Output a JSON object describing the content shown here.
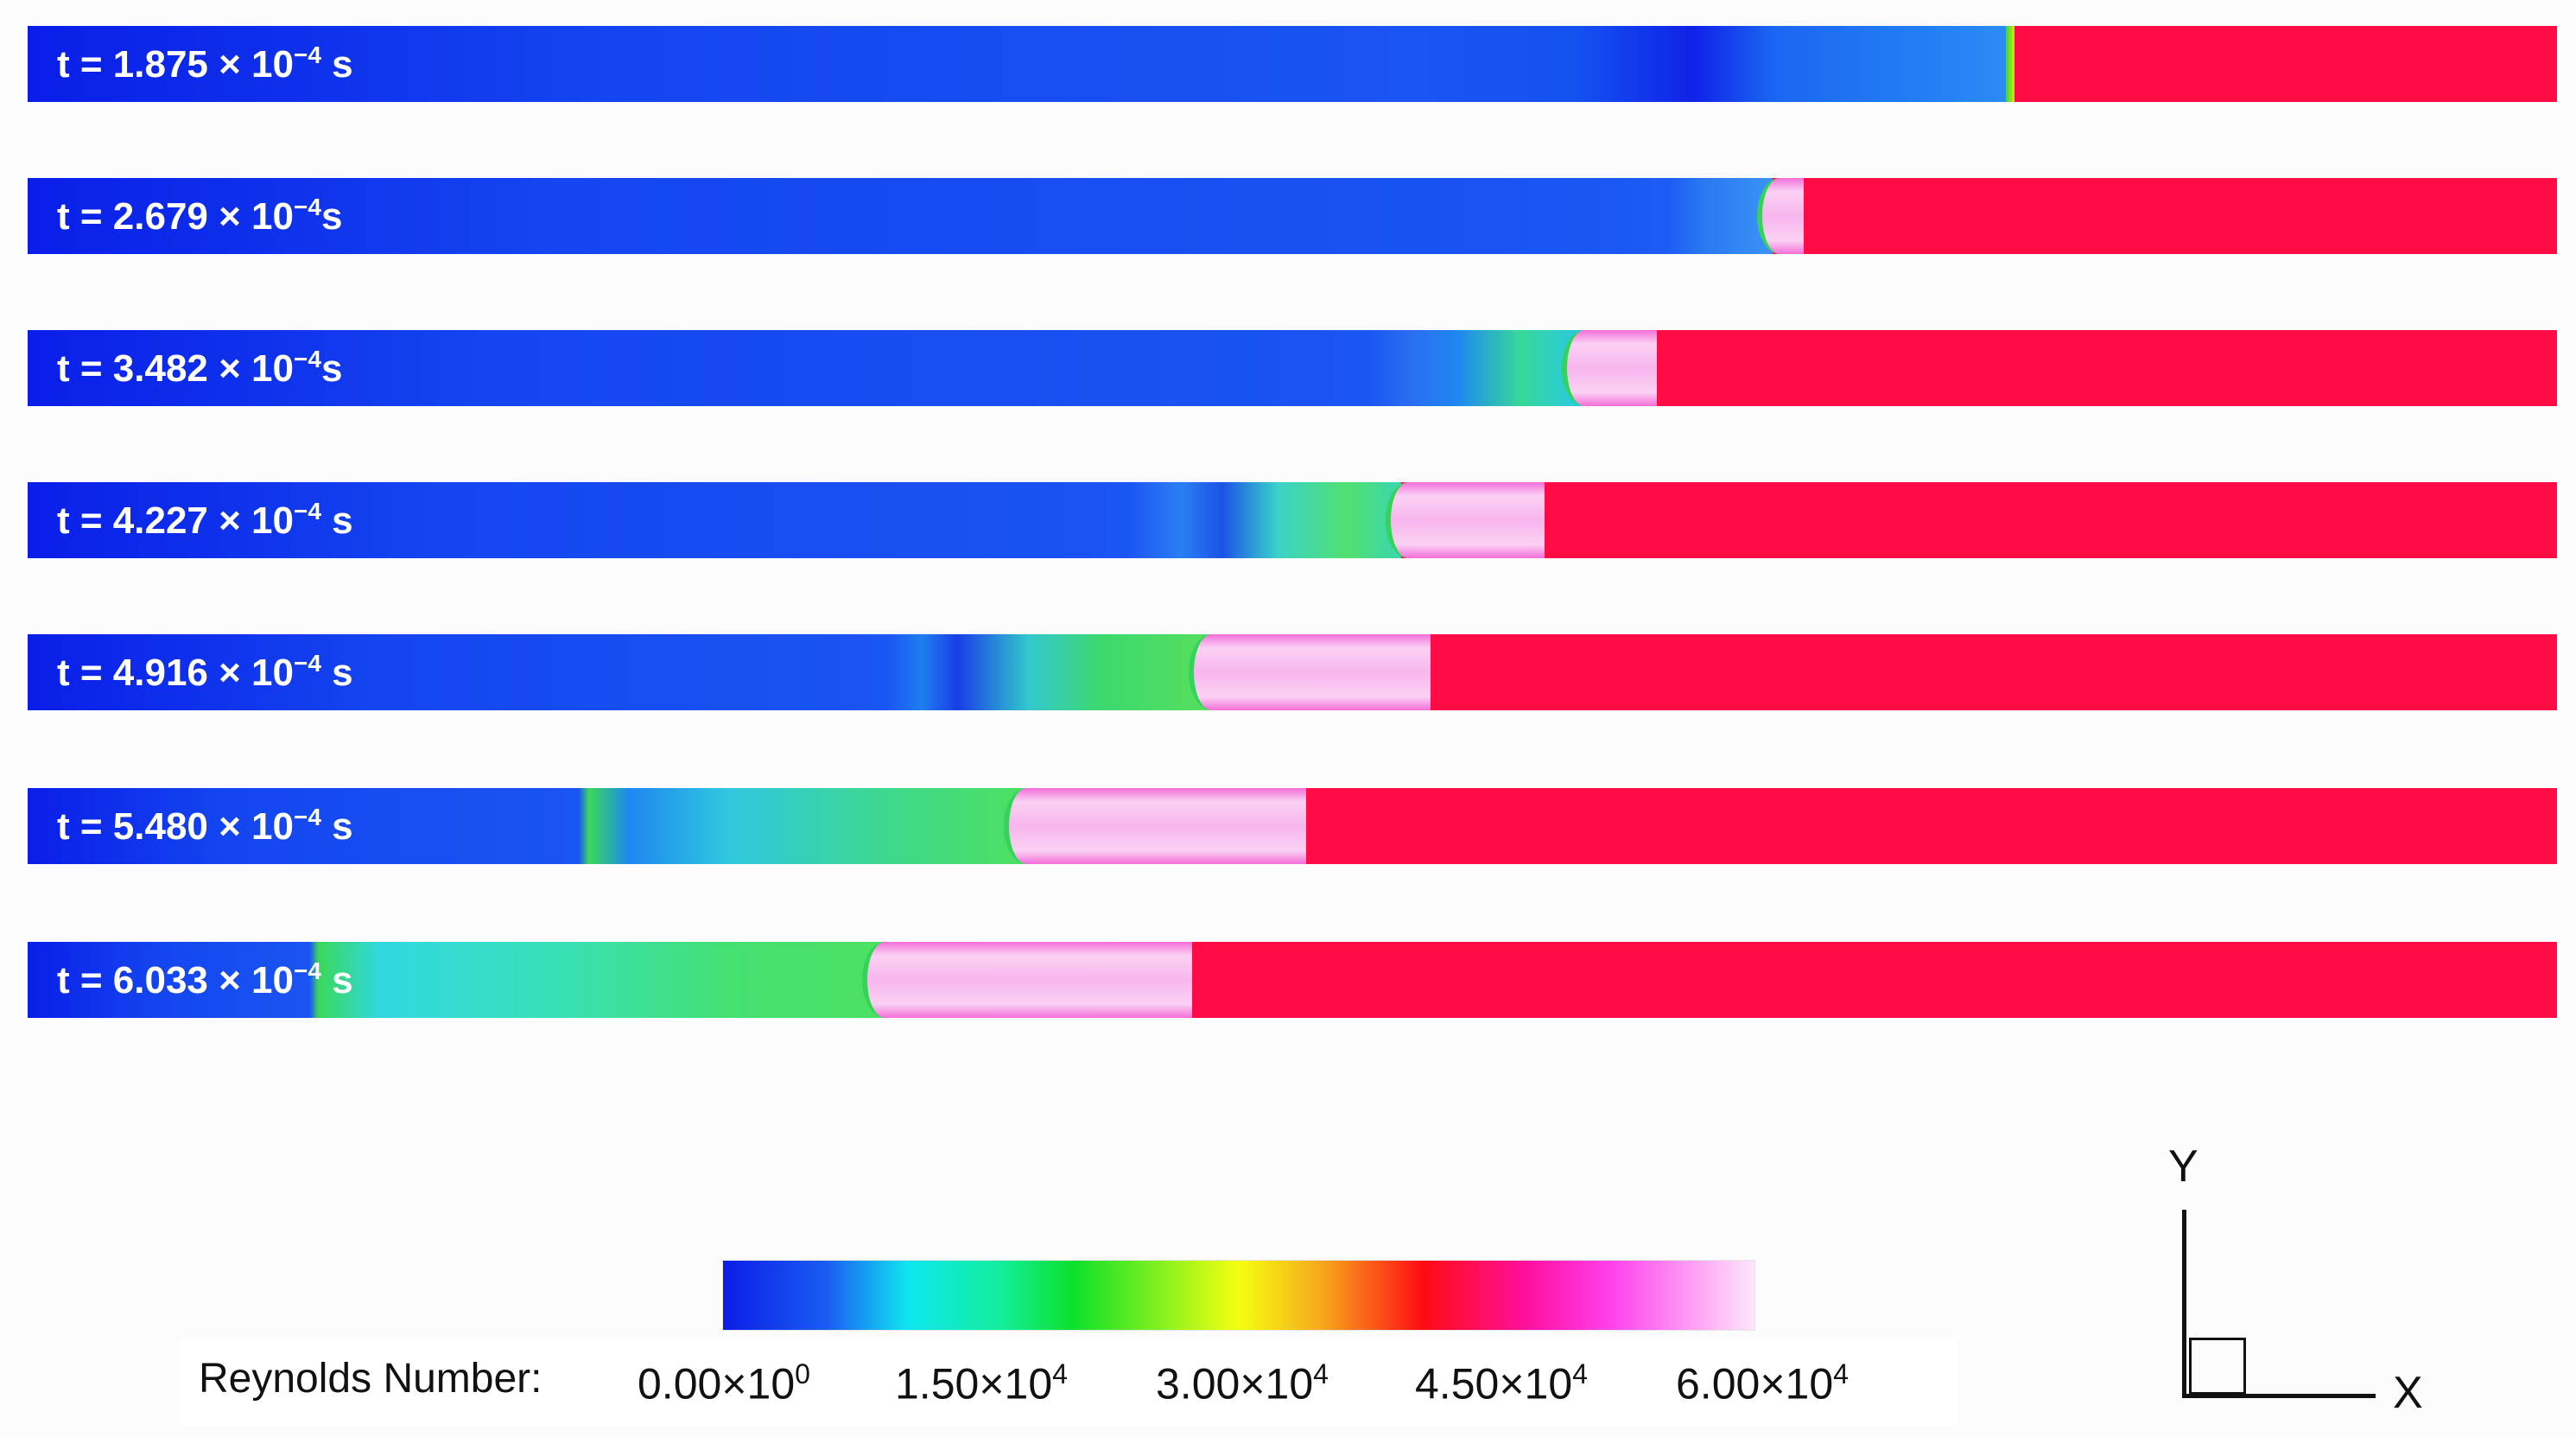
{
  "snapshots": [
    {
      "label_pre": "t = 1.875 × 10",
      "label_exp": "−4",
      "label_post": " s"
    },
    {
      "label_pre": "t = 2.679 × 10",
      "label_exp": "−4",
      "label_post": "s"
    },
    {
      "label_pre": "t = 3.482 × 10",
      "label_exp": "−4",
      "label_post": "s"
    },
    {
      "label_pre": "t = 4.227 × 10",
      "label_exp": "−4",
      "label_post": " s"
    },
    {
      "label_pre": "t = 4.916 × 10",
      "label_exp": "−4",
      "label_post": " s"
    },
    {
      "label_pre": "t = 5.480 × 10",
      "label_exp": "−4",
      "label_post": " s"
    },
    {
      "label_pre": "t = 6.033 × 10",
      "label_exp": "−4",
      "label_post": " s"
    }
  ],
  "legend": {
    "title": "Reynolds Number:",
    "ticks": [
      {
        "mant": "0.00×10",
        "exp": "0"
      },
      {
        "mant": "1.50×10",
        "exp": "4"
      },
      {
        "mant": "3.00×10",
        "exp": "4"
      },
      {
        "mant": "4.50×10",
        "exp": "4"
      },
      {
        "mant": "6.00×10",
        "exp": "4"
      }
    ],
    "colormap": [
      "#0a1ee8",
      "#0fe7f0",
      "#0ee02a",
      "#f5ff10",
      "#ff0a14",
      "#ff40ec",
      "#fde6fb"
    ]
  },
  "axes": {
    "y": "Y",
    "x": "X"
  },
  "colors": {
    "unshocked": "#ff0a44",
    "background_flow": "#1440ee",
    "slug": "#f7b6ee",
    "contact": "#37d25a"
  }
}
